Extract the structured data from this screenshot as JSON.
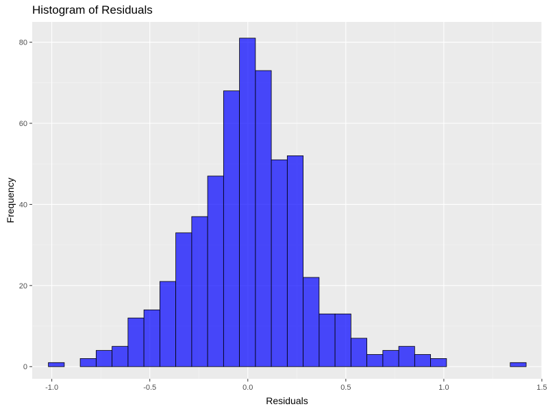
{
  "chart_data": {
    "type": "bar",
    "title": "Histogram of Residuals",
    "xlabel": "Residuals",
    "ylabel": "Frequency",
    "xlim": [
      -1.1,
      1.5
    ],
    "ylim": [
      -3,
      85
    ],
    "x_ticks": [
      -1.0,
      -0.5,
      0.0,
      0.5,
      1.0,
      1.5
    ],
    "x_tick_labels": [
      "-1.0",
      "-0.5",
      "0.0",
      "0.5",
      "1.0",
      "1.5"
    ],
    "y_ticks": [
      0,
      20,
      40,
      60,
      80
    ],
    "y_tick_labels": [
      "0",
      "20",
      "40",
      "60",
      "80"
    ],
    "bin_start": -1.0175,
    "bin_width": 0.08125,
    "values": [
      1,
      0,
      2,
      4,
      5,
      12,
      14,
      21,
      33,
      37,
      47,
      68,
      81,
      73,
      51,
      52,
      22,
      13,
      13,
      7,
      3,
      4,
      5,
      3,
      2,
      0,
      0,
      0,
      0,
      1
    ],
    "grid": true,
    "colors": {
      "bar_fill": "#0000ff",
      "bar_opacity": 0.7,
      "bar_stroke": "#000000",
      "panel_bg": "#ebebeb",
      "grid_major": "#ffffff",
      "grid_minor": "#f5f5f5"
    }
  }
}
